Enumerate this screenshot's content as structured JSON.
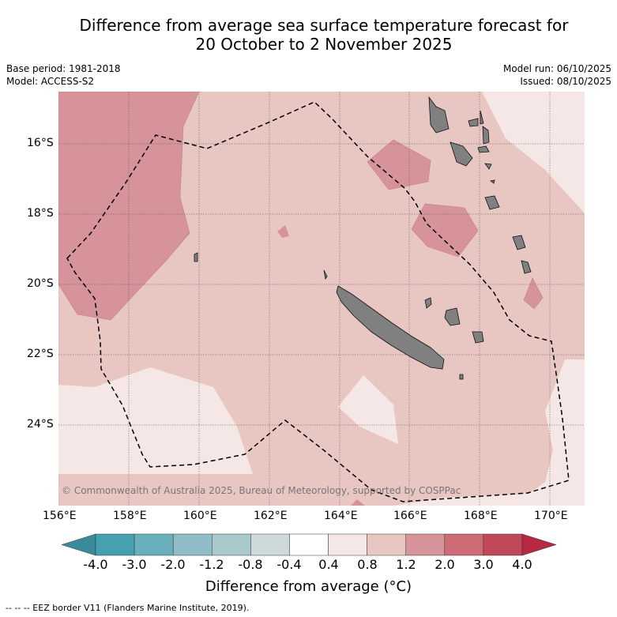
{
  "title": {
    "line1": "Difference from average sea surface temperature forecast for",
    "line2": "20 October to 2 November 2025"
  },
  "meta": {
    "base_period": "Base period: 1981-2018",
    "model": "Model: ACCESS-S2",
    "model_run": "Model run: 06/10/2025",
    "issued": "Issued: 08/10/2025"
  },
  "axes": {
    "lat_labels": [
      "16°S",
      "18°S",
      "20°S",
      "22°S",
      "24°S"
    ],
    "lon_labels": [
      "156°E",
      "158°E",
      "160°E",
      "162°E",
      "164°E",
      "166°E",
      "168°E",
      "170°E"
    ]
  },
  "copyright": "© Commonwealth of Australia 2025, Bureau of Meteorology, supported by COSPPac",
  "colorbar": {
    "ticks": [
      "-4.0",
      "-3.0",
      "-2.0",
      "-1.2",
      "-0.8",
      "-0.4",
      "0.4",
      "0.8",
      "1.2",
      "2.0",
      "3.0",
      "4.0"
    ],
    "colors": [
      "#3a8c9c",
      "#45a0b0",
      "#6aafbc",
      "#8fbcc6",
      "#aac9cc",
      "#cdd9da",
      "#ffffff",
      "#f5e7e6",
      "#e8c7c2",
      "#d7939a",
      "#cd6b76",
      "#c04858",
      "#b82840"
    ],
    "label": "Difference from average (°C)"
  },
  "legend_footer": "--  --  -- EEZ border V11 (Flanders Marine Institute, 2019).",
  "colors": {
    "bg_light": "#f5e7e6",
    "bg_mid": "#e8c7c2",
    "warm": "#d7939a",
    "land": "#808080",
    "grid": "#555555"
  }
}
